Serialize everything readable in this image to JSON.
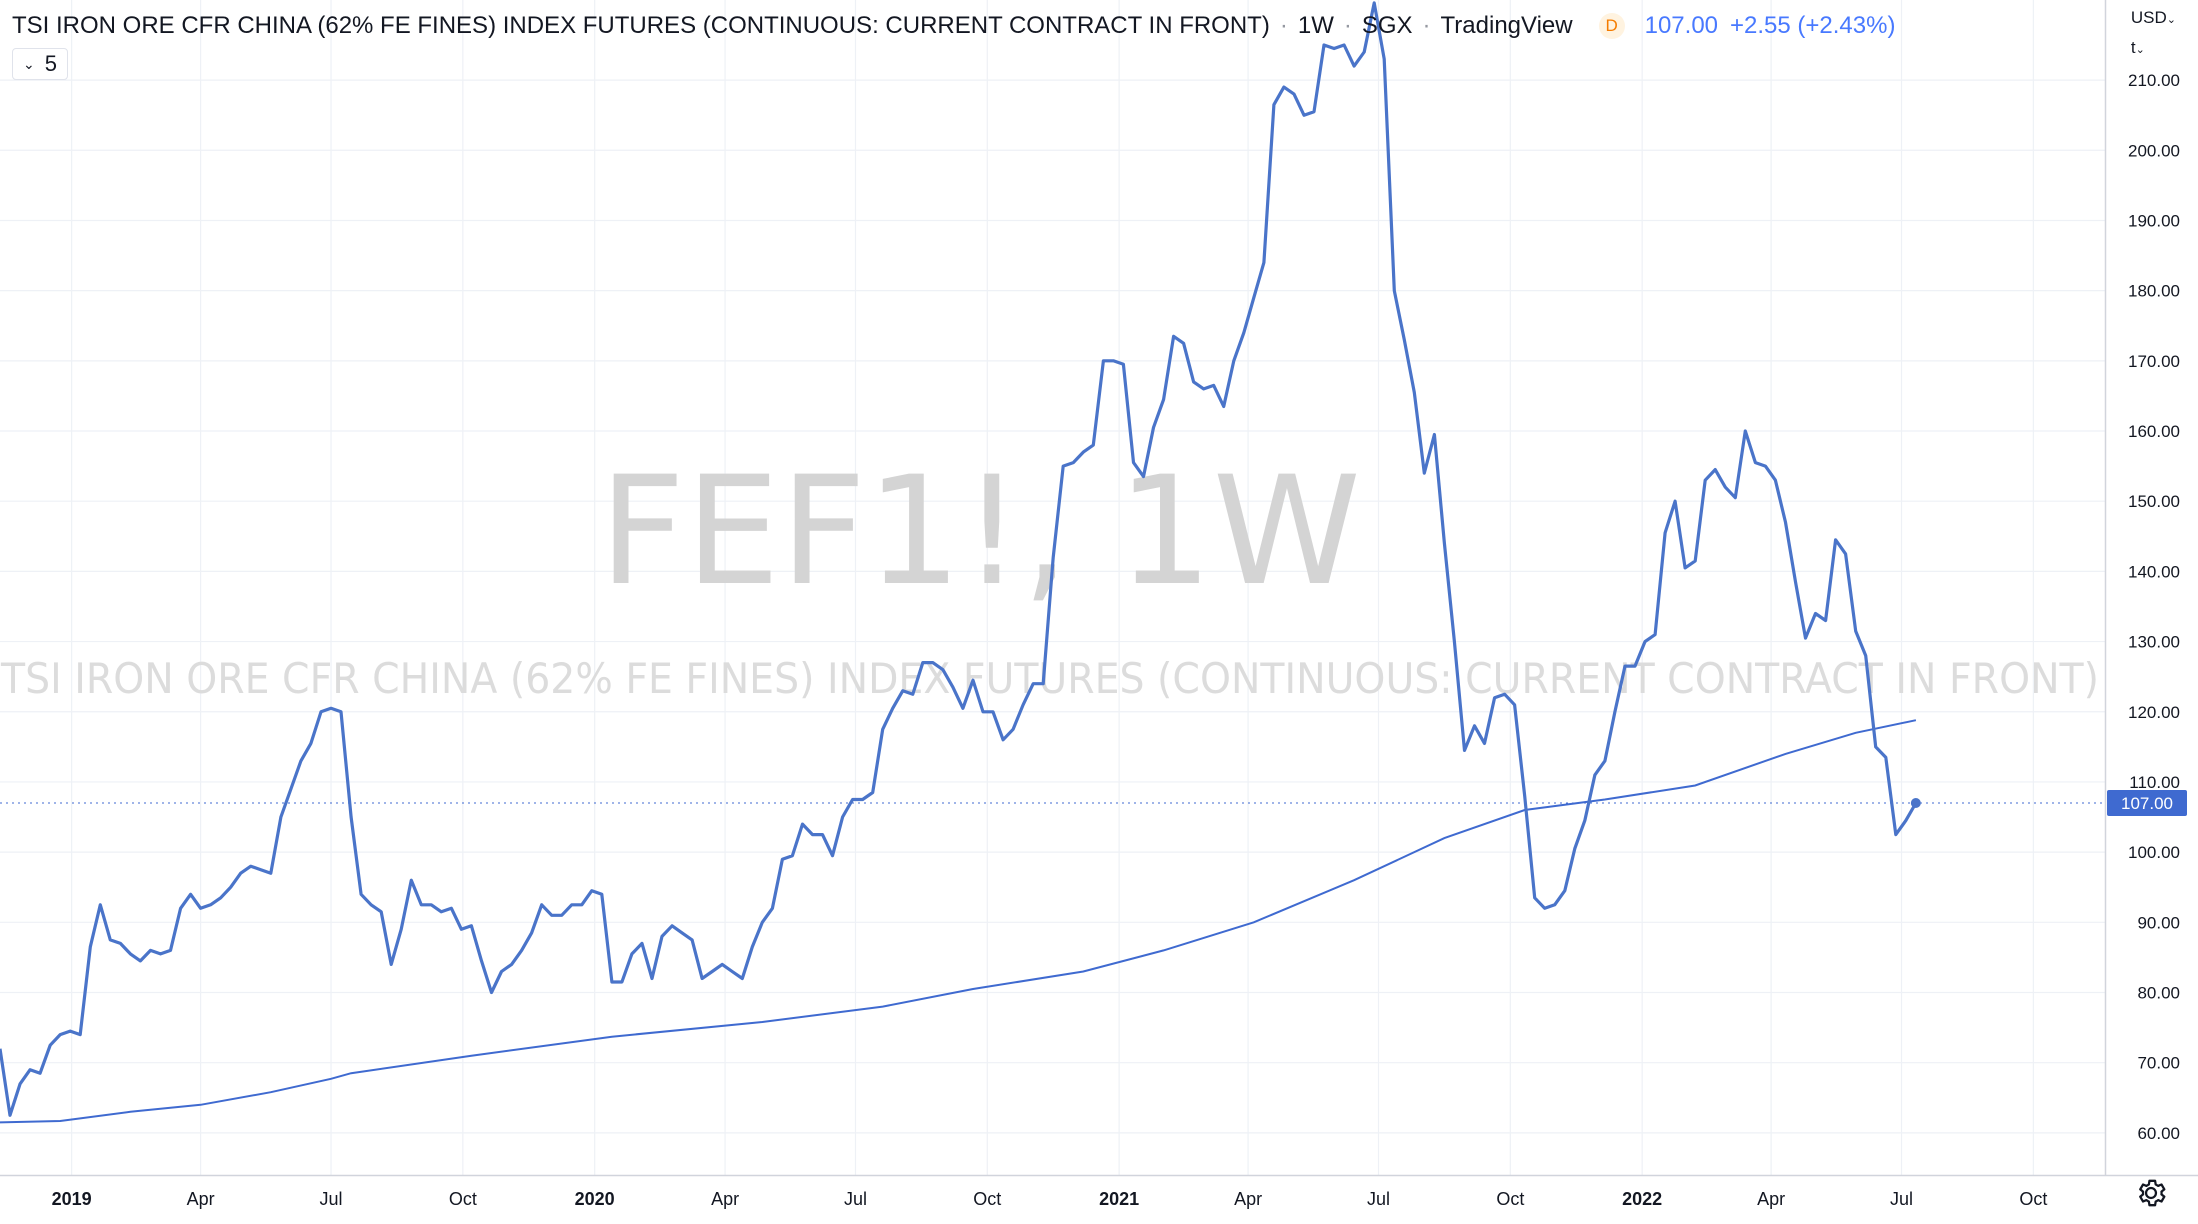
{
  "header": {
    "symbol_name": "TSI IRON ORE CFR CHINA (62% FE FINES) INDEX FUTURES (CONTINUOUS: CURRENT CONTRACT IN FRONT)",
    "interval": "1W",
    "exchange": "SGX",
    "source": "TradingView",
    "badge": "D",
    "price": "107.00",
    "change": "+2.55 (+2.43%)"
  },
  "ma_badge": {
    "value": "5"
  },
  "currency": {
    "label": "USD",
    "unit": "t"
  },
  "watermark": {
    "line1": "FEF1!, 1W",
    "line2": "TSI IRON ORE CFR CHINA (62% FE FINES) INDEX FUTURES (CONTINUOUS: CURRENT CONTRACT IN FRONT)"
  },
  "colors": {
    "line": "#4a74c9",
    "ma": "#3f6ad0",
    "grid": "#eef1f6",
    "last_price_tag": "#3f6ad0",
    "watermark": "#d0d0d0"
  },
  "icons": {
    "settings": "gear-icon",
    "currency_menu": "chevron-down-icon",
    "badge_toggle": "chevron-down-icon"
  },
  "chart_data": {
    "type": "line",
    "x_start": "2018-11-12",
    "x_end": "2022-11-20",
    "ylim": [
      54,
      215
    ],
    "y_ticks": [
      60,
      70,
      80,
      90,
      100,
      110,
      120,
      130,
      140,
      150,
      160,
      170,
      180,
      190,
      200,
      210
    ],
    "x_ticks": [
      {
        "date": "2019-01-01",
        "label": "2019",
        "bold": true
      },
      {
        "date": "2019-04-01",
        "label": "Apr"
      },
      {
        "date": "2019-07-01",
        "label": "Jul"
      },
      {
        "date": "2019-10-01",
        "label": "Oct"
      },
      {
        "date": "2020-01-01",
        "label": "2020",
        "bold": true
      },
      {
        "date": "2020-04-01",
        "label": "Apr"
      },
      {
        "date": "2020-07-01",
        "label": "Jul"
      },
      {
        "date": "2020-10-01",
        "label": "Oct"
      },
      {
        "date": "2021-01-01",
        "label": "2021",
        "bold": true
      },
      {
        "date": "2021-04-01",
        "label": "Apr"
      },
      {
        "date": "2021-07-01",
        "label": "Jul"
      },
      {
        "date": "2021-10-01",
        "label": "Oct"
      },
      {
        "date": "2022-01-01",
        "label": "2022",
        "bold": true
      },
      {
        "date": "2022-04-01",
        "label": "Apr"
      },
      {
        "date": "2022-07-01",
        "label": "Jul"
      },
      {
        "date": "2022-10-01",
        "label": "Oct"
      }
    ],
    "last_value": 107.0,
    "last_label": "107.00",
    "grid": true,
    "series": [
      {
        "values": [
          {
            "x": "2018-11-12",
            "y": 72.0
          },
          {
            "x": "2018-11-19",
            "y": 62.5
          },
          {
            "x": "2018-11-26",
            "y": 67.0
          },
          {
            "x": "2018-12-03",
            "y": 69.0
          },
          {
            "x": "2018-12-10",
            "y": 68.5
          },
          {
            "x": "2018-12-17",
            "y": 72.5
          },
          {
            "x": "2018-12-24",
            "y": 74.0
          },
          {
            "x": "2018-12-31",
            "y": 74.5
          },
          {
            "x": "2019-01-07",
            "y": 74.0
          },
          {
            "x": "2019-01-14",
            "y": 86.5
          },
          {
            "x": "2019-01-21",
            "y": 92.5
          },
          {
            "x": "2019-01-28",
            "y": 87.5
          },
          {
            "x": "2019-02-04",
            "y": 87.0
          },
          {
            "x": "2019-02-11",
            "y": 85.5
          },
          {
            "x": "2019-02-18",
            "y": 84.5
          },
          {
            "x": "2019-02-25",
            "y": 86.0
          },
          {
            "x": "2019-03-04",
            "y": 85.5
          },
          {
            "x": "2019-03-11",
            "y": 86.0
          },
          {
            "x": "2019-03-18",
            "y": 92.0
          },
          {
            "x": "2019-03-25",
            "y": 94.0
          },
          {
            "x": "2019-04-01",
            "y": 92.0
          },
          {
            "x": "2019-04-08",
            "y": 92.5
          },
          {
            "x": "2019-04-15",
            "y": 93.5
          },
          {
            "x": "2019-04-22",
            "y": 95.0
          },
          {
            "x": "2019-04-29",
            "y": 97.0
          },
          {
            "x": "2019-05-06",
            "y": 98.0
          },
          {
            "x": "2019-05-13",
            "y": 97.5
          },
          {
            "x": "2019-05-20",
            "y": 97.0
          },
          {
            "x": "2019-05-27",
            "y": 105.0
          },
          {
            "x": "2019-06-03",
            "y": 109.0
          },
          {
            "x": "2019-06-10",
            "y": 113.0
          },
          {
            "x": "2019-06-17",
            "y": 115.5
          },
          {
            "x": "2019-06-24",
            "y": 120.0
          },
          {
            "x": "2019-07-01",
            "y": 120.5
          },
          {
            "x": "2019-07-08",
            "y": 120.0
          },
          {
            "x": "2019-07-15",
            "y": 105.0
          },
          {
            "x": "2019-07-22",
            "y": 94.0
          },
          {
            "x": "2019-07-29",
            "y": 92.5
          },
          {
            "x": "2019-08-05",
            "y": 91.5
          },
          {
            "x": "2019-08-12",
            "y": 84.0
          },
          {
            "x": "2019-08-19",
            "y": 89.0
          },
          {
            "x": "2019-08-26",
            "y": 96.0
          },
          {
            "x": "2019-09-02",
            "y": 92.5
          },
          {
            "x": "2019-09-09",
            "y": 92.5
          },
          {
            "x": "2019-09-16",
            "y": 91.5
          },
          {
            "x": "2019-09-23",
            "y": 92.0
          },
          {
            "x": "2019-09-30",
            "y": 89.0
          },
          {
            "x": "2019-10-07",
            "y": 89.5
          },
          {
            "x": "2019-10-14",
            "y": 84.5
          },
          {
            "x": "2019-10-21",
            "y": 80.0
          },
          {
            "x": "2019-10-28",
            "y": 83.0
          },
          {
            "x": "2019-11-04",
            "y": 84.0
          },
          {
            "x": "2019-11-11",
            "y": 86.0
          },
          {
            "x": "2019-11-18",
            "y": 88.5
          },
          {
            "x": "2019-11-25",
            "y": 92.5
          },
          {
            "x": "2019-12-02",
            "y": 91.0
          },
          {
            "x": "2019-12-09",
            "y": 91.0
          },
          {
            "x": "2019-12-16",
            "y": 92.5
          },
          {
            "x": "2019-12-23",
            "y": 92.5
          },
          {
            "x": "2019-12-30",
            "y": 94.5
          },
          {
            "x": "2020-01-06",
            "y": 94.0
          },
          {
            "x": "2020-01-13",
            "y": 81.5
          },
          {
            "x": "2020-01-20",
            "y": 81.5
          },
          {
            "x": "2020-01-27",
            "y": 85.5
          },
          {
            "x": "2020-02-03",
            "y": 87.0
          },
          {
            "x": "2020-02-10",
            "y": 82.0
          },
          {
            "x": "2020-02-17",
            "y": 88.0
          },
          {
            "x": "2020-02-24",
            "y": 89.5
          },
          {
            "x": "2020-03-02",
            "y": 88.5
          },
          {
            "x": "2020-03-09",
            "y": 87.5
          },
          {
            "x": "2020-03-16",
            "y": 82.0
          },
          {
            "x": "2020-03-23",
            "y": 83.0
          },
          {
            "x": "2020-03-30",
            "y": 84.0
          },
          {
            "x": "2020-04-06",
            "y": 83.0
          },
          {
            "x": "2020-04-13",
            "y": 82.0
          },
          {
            "x": "2020-04-20",
            "y": 86.5
          },
          {
            "x": "2020-04-27",
            "y": 90.0
          },
          {
            "x": "2020-05-04",
            "y": 92.0
          },
          {
            "x": "2020-05-11",
            "y": 99.0
          },
          {
            "x": "2020-05-18",
            "y": 99.5
          },
          {
            "x": "2020-05-25",
            "y": 104.0
          },
          {
            "x": "2020-06-01",
            "y": 102.5
          },
          {
            "x": "2020-06-08",
            "y": 102.5
          },
          {
            "x": "2020-06-15",
            "y": 99.5
          },
          {
            "x": "2020-06-22",
            "y": 105.0
          },
          {
            "x": "2020-06-29",
            "y": 107.5
          },
          {
            "x": "2020-07-06",
            "y": 107.5
          },
          {
            "x": "2020-07-13",
            "y": 108.5
          },
          {
            "x": "2020-07-20",
            "y": 117.5
          },
          {
            "x": "2020-07-27",
            "y": 120.5
          },
          {
            "x": "2020-08-03",
            "y": 123.0
          },
          {
            "x": "2020-08-10",
            "y": 122.5
          },
          {
            "x": "2020-08-17",
            "y": 127.0
          },
          {
            "x": "2020-08-24",
            "y": 127.0
          },
          {
            "x": "2020-08-31",
            "y": 126.0
          },
          {
            "x": "2020-09-07",
            "y": 123.5
          },
          {
            "x": "2020-09-14",
            "y": 120.5
          },
          {
            "x": "2020-09-21",
            "y": 124.5
          },
          {
            "x": "2020-09-28",
            "y": 120.0
          },
          {
            "x": "2020-10-05",
            "y": 120.0
          },
          {
            "x": "2020-10-12",
            "y": 116.0
          },
          {
            "x": "2020-10-19",
            "y": 117.5
          },
          {
            "x": "2020-10-26",
            "y": 121.0
          },
          {
            "x": "2020-11-02",
            "y": 124.0
          },
          {
            "x": "2020-11-09",
            "y": 124.0
          },
          {
            "x": "2020-11-16",
            "y": 142.0
          },
          {
            "x": "2020-11-23",
            "y": 155.0
          },
          {
            "x": "2020-11-30",
            "y": 155.5
          },
          {
            "x": "2020-12-07",
            "y": 157.0
          },
          {
            "x": "2020-12-14",
            "y": 158.0
          },
          {
            "x": "2020-12-21",
            "y": 170.0
          },
          {
            "x": "2020-12-28",
            "y": 170.0
          },
          {
            "x": "2021-01-04",
            "y": 169.5
          },
          {
            "x": "2021-01-11",
            "y": 155.5
          },
          {
            "x": "2021-01-18",
            "y": 153.5
          },
          {
            "x": "2021-01-25",
            "y": 160.5
          },
          {
            "x": "2021-02-01",
            "y": 164.5
          },
          {
            "x": "2021-02-08",
            "y": 173.5
          },
          {
            "x": "2021-02-15",
            "y": 172.5
          },
          {
            "x": "2021-02-22",
            "y": 167.0
          },
          {
            "x": "2021-03-01",
            "y": 166.0
          },
          {
            "x": "2021-03-08",
            "y": 166.5
          },
          {
            "x": "2021-03-15",
            "y": 163.5
          },
          {
            "x": "2021-03-22",
            "y": 170.0
          },
          {
            "x": "2021-03-29",
            "y": 174.0
          },
          {
            "x": "2021-04-05",
            "y": 179.0
          },
          {
            "x": "2021-04-12",
            "y": 184.0
          },
          {
            "x": "2021-04-19",
            "y": 206.5
          },
          {
            "x": "2021-04-26",
            "y": 209.0
          },
          {
            "x": "2021-05-03",
            "y": 208.0
          },
          {
            "x": "2021-05-10",
            "y": 205.0
          },
          {
            "x": "2021-05-17",
            "y": 205.5
          },
          {
            "x": "2021-05-24",
            "y": 215.0
          },
          {
            "x": "2021-05-31",
            "y": 214.5
          },
          {
            "x": "2021-06-07",
            "y": 215.0
          },
          {
            "x": "2021-06-14",
            "y": 212.0
          },
          {
            "x": "2021-06-21",
            "y": 214.0
          },
          {
            "x": "2021-06-28",
            "y": 221.0
          },
          {
            "x": "2021-07-05",
            "y": 213.0
          },
          {
            "x": "2021-07-12",
            "y": 180.0
          },
          {
            "x": "2021-07-19",
            "y": 173.0
          },
          {
            "x": "2021-07-26",
            "y": 165.5
          },
          {
            "x": "2021-08-02",
            "y": 154.0
          },
          {
            "x": "2021-08-09",
            "y": 159.5
          },
          {
            "x": "2021-08-16",
            "y": 144.0
          },
          {
            "x": "2021-08-23",
            "y": 130.0
          },
          {
            "x": "2021-08-30",
            "y": 114.5
          },
          {
            "x": "2021-09-06",
            "y": 118.0
          },
          {
            "x": "2021-09-13",
            "y": 115.5
          },
          {
            "x": "2021-09-20",
            "y": 122.0
          },
          {
            "x": "2021-09-27",
            "y": 122.5
          },
          {
            "x": "2021-10-04",
            "y": 121.0
          },
          {
            "x": "2021-10-11",
            "y": 108.0
          },
          {
            "x": "2021-10-18",
            "y": 93.5
          },
          {
            "x": "2021-10-25",
            "y": 92.0
          },
          {
            "x": "2021-11-01",
            "y": 92.5
          },
          {
            "x": "2021-11-08",
            "y": 94.5
          },
          {
            "x": "2021-11-15",
            "y": 100.5
          },
          {
            "x": "2021-11-22",
            "y": 104.5
          },
          {
            "x": "2021-11-29",
            "y": 111.0
          },
          {
            "x": "2021-12-06",
            "y": 113.0
          },
          {
            "x": "2021-12-13",
            "y": 120.0
          },
          {
            "x": "2021-12-20",
            "y": 126.5
          },
          {
            "x": "2021-12-27",
            "y": 126.5
          },
          {
            "x": "2022-01-03",
            "y": 130.0
          },
          {
            "x": "2022-01-10",
            "y": 131.0
          },
          {
            "x": "2022-01-17",
            "y": 145.5
          },
          {
            "x": "2022-01-24",
            "y": 150.0
          },
          {
            "x": "2022-01-31",
            "y": 140.5
          },
          {
            "x": "2022-02-07",
            "y": 141.5
          },
          {
            "x": "2022-02-14",
            "y": 153.0
          },
          {
            "x": "2022-02-21",
            "y": 154.5
          },
          {
            "x": "2022-02-28",
            "y": 152.0
          },
          {
            "x": "2022-03-07",
            "y": 150.5
          },
          {
            "x": "2022-03-14",
            "y": 160.0
          },
          {
            "x": "2022-03-21",
            "y": 155.5
          },
          {
            "x": "2022-03-28",
            "y": 155.0
          },
          {
            "x": "2022-04-04",
            "y": 153.0
          },
          {
            "x": "2022-04-11",
            "y": 147.0
          },
          {
            "x": "2022-04-18",
            "y": 138.5
          },
          {
            "x": "2022-04-25",
            "y": 130.5
          },
          {
            "x": "2022-05-02",
            "y": 134.0
          },
          {
            "x": "2022-05-09",
            "y": 133.0
          },
          {
            "x": "2022-05-16",
            "y": 144.5
          },
          {
            "x": "2022-05-23",
            "y": 142.5
          },
          {
            "x": "2022-05-30",
            "y": 131.5
          },
          {
            "x": "2022-06-06",
            "y": 128.0
          },
          {
            "x": "2022-06-13",
            "y": 115.0
          },
          {
            "x": "2022-06-20",
            "y": 113.5
          },
          {
            "x": "2022-06-27",
            "y": 102.5
          },
          {
            "x": "2022-07-04",
            "y": 104.5
          },
          {
            "x": "2022-07-11",
            "y": 107.0
          }
        ]
      },
      {
        "values": [
          {
            "x": "2018-11-12",
            "y": 61.5
          },
          {
            "x": "2018-12-24",
            "y": 61.7
          },
          {
            "x": "2019-02-11",
            "y": 63.0
          },
          {
            "x": "2019-04-01",
            "y": 64.0
          },
          {
            "x": "2019-05-20",
            "y": 65.8
          },
          {
            "x": "2019-07-01",
            "y": 67.7
          },
          {
            "x": "2019-07-15",
            "y": 68.5
          },
          {
            "x": "2019-10-07",
            "y": 71.0
          },
          {
            "x": "2020-01-13",
            "y": 73.7
          },
          {
            "x": "2020-04-27",
            "y": 75.8
          },
          {
            "x": "2020-07-20",
            "y": 78.0
          },
          {
            "x": "2020-09-21",
            "y": 80.5
          },
          {
            "x": "2020-12-07",
            "y": 83.0
          },
          {
            "x": "2021-02-01",
            "y": 86.0
          },
          {
            "x": "2021-04-05",
            "y": 90.0
          },
          {
            "x": "2021-06-14",
            "y": 96.0
          },
          {
            "x": "2021-08-16",
            "y": 102.0
          },
          {
            "x": "2021-10-11",
            "y": 106.0
          },
          {
            "x": "2021-12-06",
            "y": 107.5
          },
          {
            "x": "2022-02-07",
            "y": 109.5
          },
          {
            "x": "2022-04-11",
            "y": 114.0
          },
          {
            "x": "2022-05-30",
            "y": 117.0
          },
          {
            "x": "2022-07-11",
            "y": 118.8
          }
        ]
      }
    ]
  }
}
